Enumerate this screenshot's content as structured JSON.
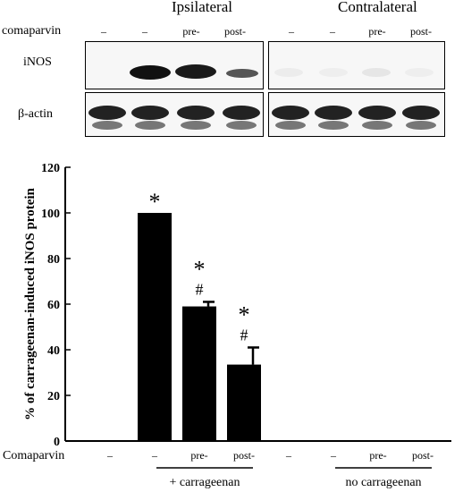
{
  "blot": {
    "group_headers": [
      "Ipsilateral",
      "Contralateral"
    ],
    "treatment_label": "comaparvin",
    "lane_labels": [
      "–",
      "–",
      "pre-",
      "post-",
      "–",
      "–",
      "pre-",
      "post-"
    ],
    "row_labels": [
      "iNOS",
      "β-actin"
    ]
  },
  "chart_data": {
    "type": "bar",
    "ylabel": "% of carrageenan-induced iNOS protein",
    "ylim": [
      0,
      120
    ],
    "yticks": [
      0,
      20,
      40,
      60,
      80,
      100,
      120
    ],
    "categories": [
      "–",
      "–",
      "pre-",
      "post-",
      "–",
      "–",
      "pre-",
      "post-"
    ],
    "values": [
      0,
      100,
      59,
      33.5,
      0,
      0,
      0,
      0
    ],
    "errors": [
      0,
      0,
      2,
      7.5,
      0,
      0,
      0,
      0
    ],
    "annotations": [
      "",
      "*",
      "*\n#",
      "*\n#",
      "",
      "",
      "",
      ""
    ],
    "x_row_label": "Comaparvin",
    "group_labels": [
      "+   carrageenan",
      "no   carrageenan"
    ]
  }
}
